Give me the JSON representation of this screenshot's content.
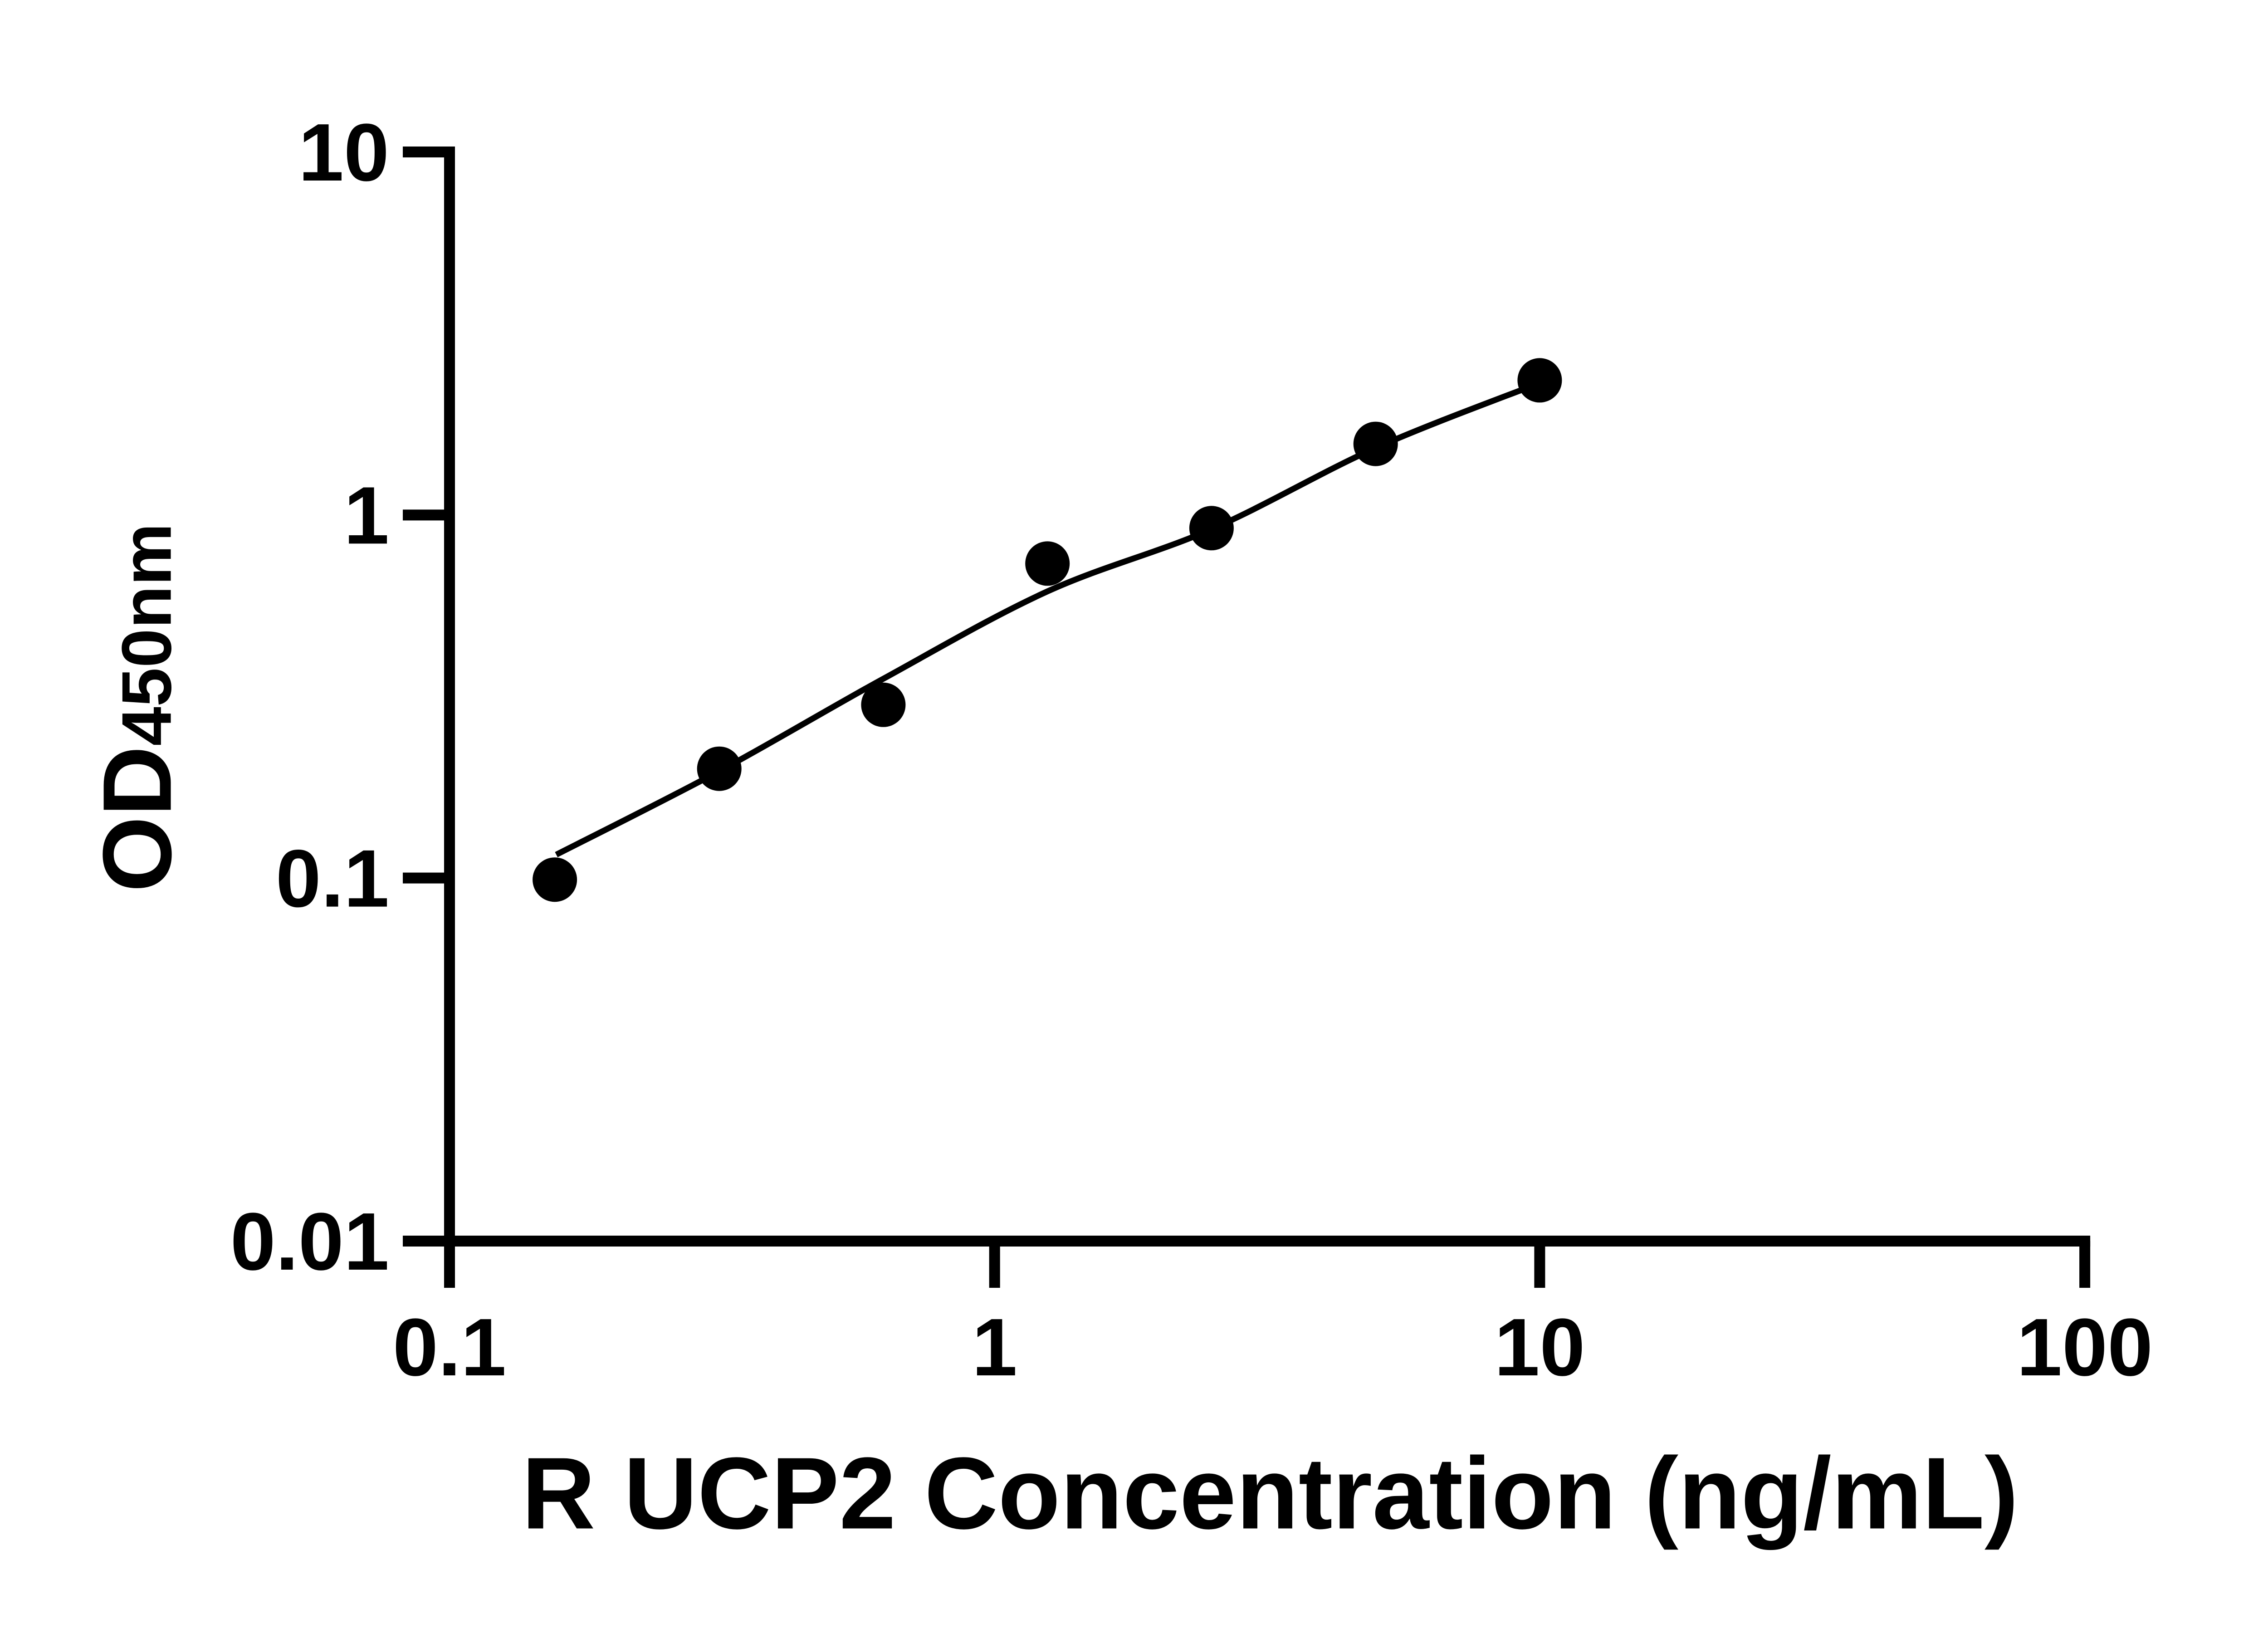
{
  "figure": {
    "background": "#ffffff",
    "foreground": "#000000"
  },
  "chart_data": {
    "type": "scatter",
    "title": "",
    "xlabel": "R UCP2 Concentration (ng/mL)",
    "ylabel_main": "OD",
    "ylabel_sub": "450nm",
    "x_scale": "log",
    "y_scale": "log",
    "xlim": [
      0.1,
      100
    ],
    "ylim": [
      0.01,
      10
    ],
    "grid": false,
    "legend": false,
    "x_ticks": [
      {
        "value": 0.1,
        "label": "0.1"
      },
      {
        "value": 1,
        "label": "1"
      },
      {
        "value": 10,
        "label": "10"
      },
      {
        "value": 100,
        "label": "100"
      }
    ],
    "y_ticks": [
      {
        "value": 10,
        "label": "10"
      },
      {
        "value": 1,
        "label": "1"
      },
      {
        "value": 0.1,
        "label": "0.1"
      },
      {
        "value": 0.01,
        "label": "0.01"
      }
    ],
    "series": [
      {
        "marker": "circle",
        "color": "#000000",
        "points": [
          {
            "x": 0.156,
            "y": 0.099
          },
          {
            "x": 0.3125,
            "y": 0.2
          },
          {
            "x": 0.625,
            "y": 0.3
          },
          {
            "x": 1.25,
            "y": 0.735
          },
          {
            "x": 2.5,
            "y": 0.92
          },
          {
            "x": 5,
            "y": 1.57
          },
          {
            "x": 10,
            "y": 2.35
          }
        ]
      }
    ],
    "fit_curve": {
      "color": "#000000",
      "points": [
        {
          "x": 0.157,
          "y": 0.116
        },
        {
          "x": 0.3125,
          "y": 0.197
        },
        {
          "x": 0.625,
          "y": 0.354
        },
        {
          "x": 1.25,
          "y": 0.616
        },
        {
          "x": 2.5,
          "y": 0.914
        },
        {
          "x": 5,
          "y": 1.53
        },
        {
          "x": 10,
          "y": 2.31
        }
      ]
    }
  }
}
